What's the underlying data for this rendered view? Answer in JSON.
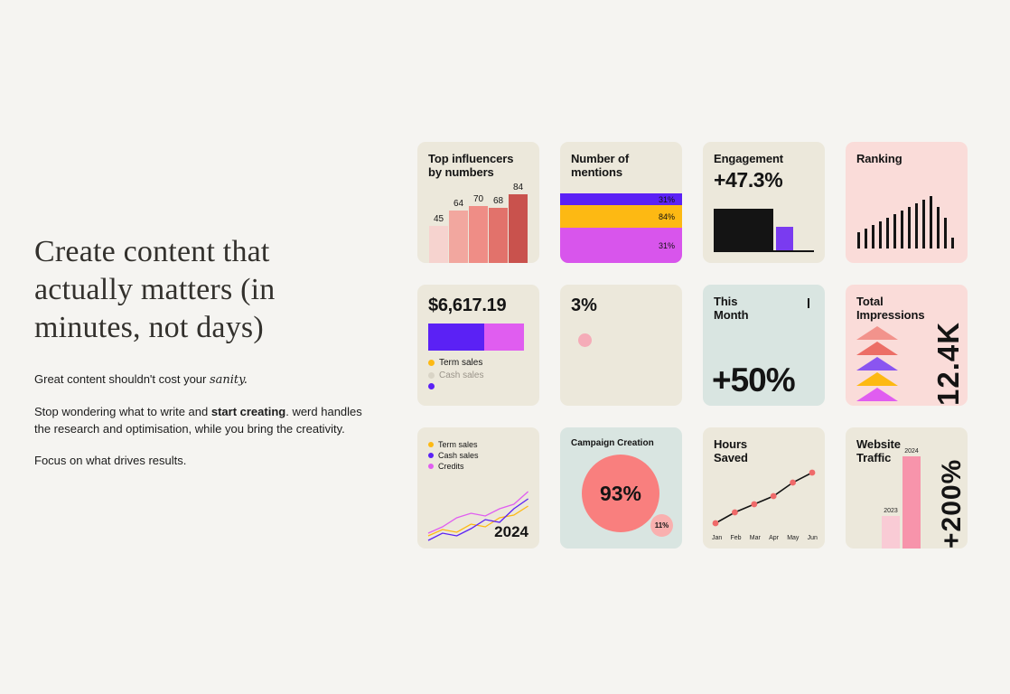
{
  "hero": {
    "heading_lines": [
      "Create content that",
      "actually matters (in",
      "minutes, not days)"
    ],
    "p1_prefix": "Great content shouldn't cost your ",
    "p1_script": "sanity.",
    "p2_a": "Stop wondering what to write and ",
    "p2_bold": "start creating",
    "p2_b": ". werd handles the research and optimisation, while you bring the creativity.",
    "p3": "Focus on what drives results."
  },
  "cards": {
    "influencers": {
      "title_line1": "Top influencers",
      "title_line2": "by numbers",
      "values": [
        45,
        64,
        70,
        68,
        84
      ],
      "colors": [
        "#f6d3cf",
        "#f2a79f",
        "#ef8d86",
        "#e2726b",
        "#c9524d"
      ]
    },
    "mentions": {
      "title_line1": "Number of",
      "title_line2": "mentions",
      "rows": [
        {
          "pct": "31%",
          "color": "#5b21f5",
          "h": 13
        },
        {
          "pct": "84%",
          "color": "#fdb913",
          "h": 25
        },
        {
          "pct": "31%",
          "color": "#d855ec",
          "h": 39
        }
      ]
    },
    "engagement": {
      "title": "Engagement",
      "value": "+47.3%"
    },
    "ranking": {
      "title": "Ranking",
      "bars": [
        18,
        22,
        26,
        30,
        34,
        38,
        42,
        46,
        50,
        54,
        58,
        46,
        34,
        12
      ]
    },
    "sales_total": {
      "value": "$6,617.19",
      "segments": [
        {
          "color": "#5b21f5",
          "w": 62
        },
        {
          "color": "#e05df0",
          "w": 44
        }
      ],
      "legend": [
        {
          "label": "Term sales",
          "color": "#fdb913",
          "muted": false
        },
        {
          "label": "Cash sales",
          "color": "#d9d4c6",
          "muted": true
        },
        {
          "label": "",
          "color": "#5b21f5",
          "muted": false
        }
      ]
    },
    "three_pct": {
      "value": "3%"
    },
    "this_month": {
      "title_line1": "This",
      "title_line2": "Month",
      "value": "+50%"
    },
    "impressions": {
      "title_line1": "Total",
      "title_line2": "Impressions",
      "value": "12.4K",
      "triangle_colors": [
        "#f2938c",
        "#ec6e66",
        "#8a55f0",
        "#fdb913",
        "#e05df0"
      ]
    },
    "sales_lines": {
      "legend": [
        {
          "label": "Term sales",
          "color": "#fdb913",
          "muted": false
        },
        {
          "label": "Cash sales",
          "color": "#5b21f5",
          "muted": false
        },
        {
          "label": "Credits",
          "color": "#e05df0",
          "muted": false
        }
      ],
      "series": [
        {
          "color": "#fdb913",
          "y": [
            56,
            49,
            52,
            43,
            46,
            36,
            33,
            23
          ]
        },
        {
          "color": "#5b21f5",
          "y": [
            61,
            53,
            56,
            48,
            38,
            41,
            26,
            15
          ]
        },
        {
          "color": "#e05df0",
          "y": [
            53,
            46,
            36,
            31,
            34,
            26,
            21,
            7
          ]
        }
      ],
      "year": "2024"
    },
    "campaign": {
      "title": "Campaign Creation",
      "big_pct": "93%",
      "small_pct": "11%"
    },
    "hours": {
      "title_line1": "Hours",
      "title_line2": "Saved",
      "y": [
        62,
        50,
        41,
        32,
        17,
        6
      ],
      "months": [
        "Jan",
        "Feb",
        "Mar",
        "Apr",
        "May",
        "Jun"
      ]
    },
    "traffic": {
      "title_line1": "Website",
      "title_line2": "Traffic",
      "value": "+200%",
      "bars": [
        {
          "label": "2023",
          "h": 36,
          "color": "#f9cbd5"
        },
        {
          "label": "2024",
          "h": 102,
          "color": "#f794ab"
        }
      ]
    }
  }
}
